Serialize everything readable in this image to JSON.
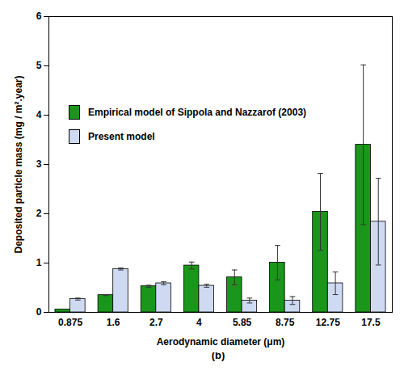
{
  "chart_data": {
    "type": "bar",
    "caption": "(b)",
    "x_label": "Aerodynamic diameter (μm)",
    "y_label": "Deposited particle mass (mg / m².year)",
    "categories": [
      "0.875",
      "1.6",
      "2.7",
      "4",
      "5.85",
      "8.75",
      "12.75",
      "17.5"
    ],
    "series": [
      {
        "name": "Empirical model of Sippola and Nazzarof (2003)",
        "color": "#1a961a",
        "values": [
          0.06,
          0.35,
          0.53,
          0.95,
          0.71,
          1.01,
          2.04,
          3.4
        ],
        "errors": [
          0,
          0.01,
          0.02,
          0.07,
          0.15,
          0.35,
          0.78,
          1.62
        ]
      },
      {
        "name": "Present model",
        "color": "#cddaf2",
        "values": [
          0.27,
          0.88,
          0.59,
          0.54,
          0.24,
          0.24,
          0.59,
          1.84
        ],
        "errors": [
          0.02,
          0.02,
          0.03,
          0.03,
          0.05,
          0.08,
          0.23,
          0.88
        ]
      }
    ],
    "ylim": [
      0,
      6
    ],
    "yticks": [
      0,
      1,
      2,
      3,
      4,
      5,
      6
    ],
    "legend": "top-left",
    "grid": false
  }
}
